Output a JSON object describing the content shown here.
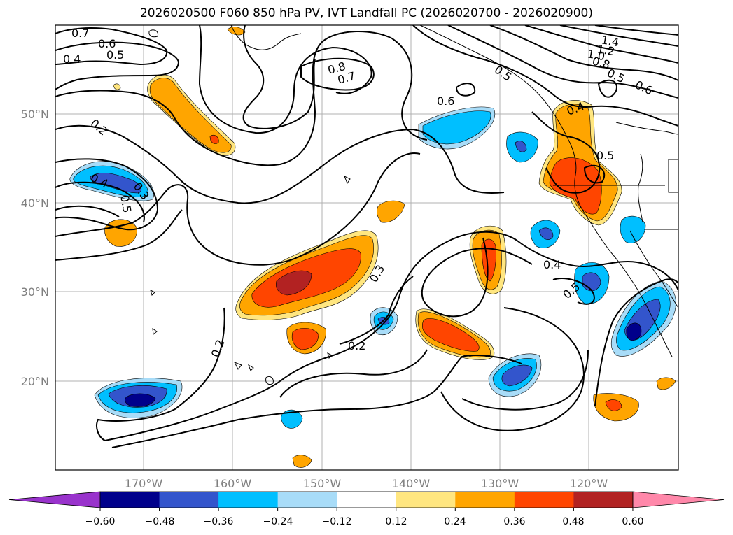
{
  "title": "2026020500 F060 850 hPa PV, IVT Landfall PC (2026020700 - 2026020900)",
  "axes": {
    "lon_ticks": [
      "170°W",
      "160°W",
      "150°W",
      "140°W",
      "130°W",
      "120°W"
    ],
    "lat_ticks": [
      "50°N",
      "40°N",
      "30°N",
      "20°N"
    ]
  },
  "colorbar": {
    "tick_labels": [
      "−0.60",
      "−0.48",
      "−0.36",
      "−0.24",
      "−0.12",
      "0.12",
      "0.24",
      "0.36",
      "0.48",
      "0.60"
    ],
    "colors": [
      "#9933cc",
      "#00008b",
      "#3355cc",
      "#00bfff",
      "#a8dcf8",
      "#ffffff",
      "#ffe680",
      "#ffa500",
      "#ff4500",
      "#b22222",
      "#ff88aa"
    ]
  },
  "contour_labels": [
    "0.7",
    "0.6",
    "0.5",
    "0.4",
    "0.2",
    "0.8",
    "0.7",
    "0.6",
    "0.5",
    "1.4",
    "1.2",
    "1.0",
    "0.8",
    "0.5",
    "0.6",
    "0.4",
    "0.5",
    "0.4",
    "0.3",
    "0.5",
    "0.3",
    "0.2",
    "0.2",
    "0.4",
    "0.5"
  ]
}
